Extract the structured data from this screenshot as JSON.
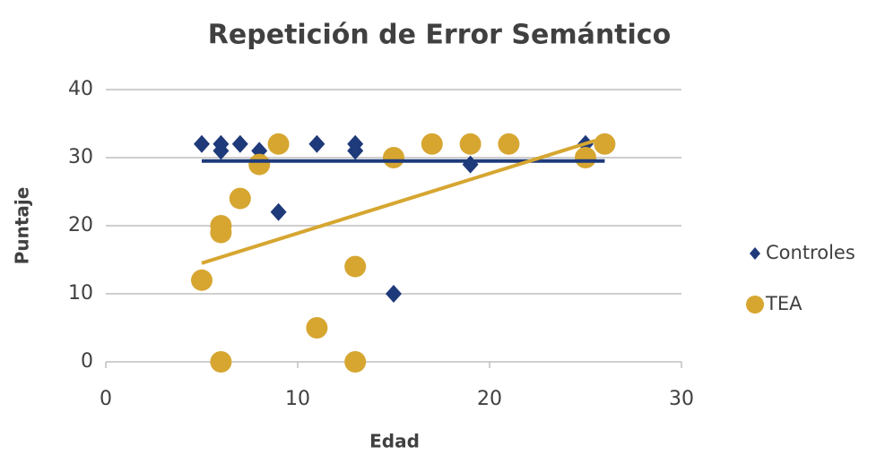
{
  "chart_data": {
    "type": "scatter",
    "title": "Repetición de Error Semántico",
    "xlabel": "Edad",
    "ylabel": "Puntaje",
    "xlim": [
      0,
      30
    ],
    "xticks": [
      0,
      10,
      20,
      30
    ],
    "ylim": [
      0,
      40
    ],
    "yticks": [
      0,
      10,
      20,
      30,
      40
    ],
    "grid": true,
    "legend": "right",
    "series": [
      {
        "name": "Controles",
        "color": "#1f3a7a",
        "marker": "diamond",
        "x": [
          5,
          6,
          6,
          7,
          8,
          9,
          11,
          13,
          13,
          15,
          19,
          25
        ],
        "values": [
          32,
          32,
          31,
          32,
          31,
          22,
          32,
          32,
          31,
          10,
          29,
          32
        ],
        "trendline": {
          "x": [
            5,
            26
          ],
          "values": [
            29.5,
            29.5
          ]
        }
      },
      {
        "name": "TEA",
        "color": "#d6a631",
        "marker": "circle",
        "x": [
          5,
          6,
          6,
          6,
          7,
          8,
          9,
          11,
          13,
          13,
          15,
          17,
          19,
          21,
          25,
          26
        ],
        "values": [
          12,
          0,
          19,
          20,
          24,
          29,
          32,
          5,
          14,
          0,
          30,
          32,
          32,
          32,
          30,
          32
        ],
        "trendline": {
          "x": [
            5,
            25.5
          ],
          "values": [
            14.5,
            32.5
          ]
        }
      }
    ]
  }
}
